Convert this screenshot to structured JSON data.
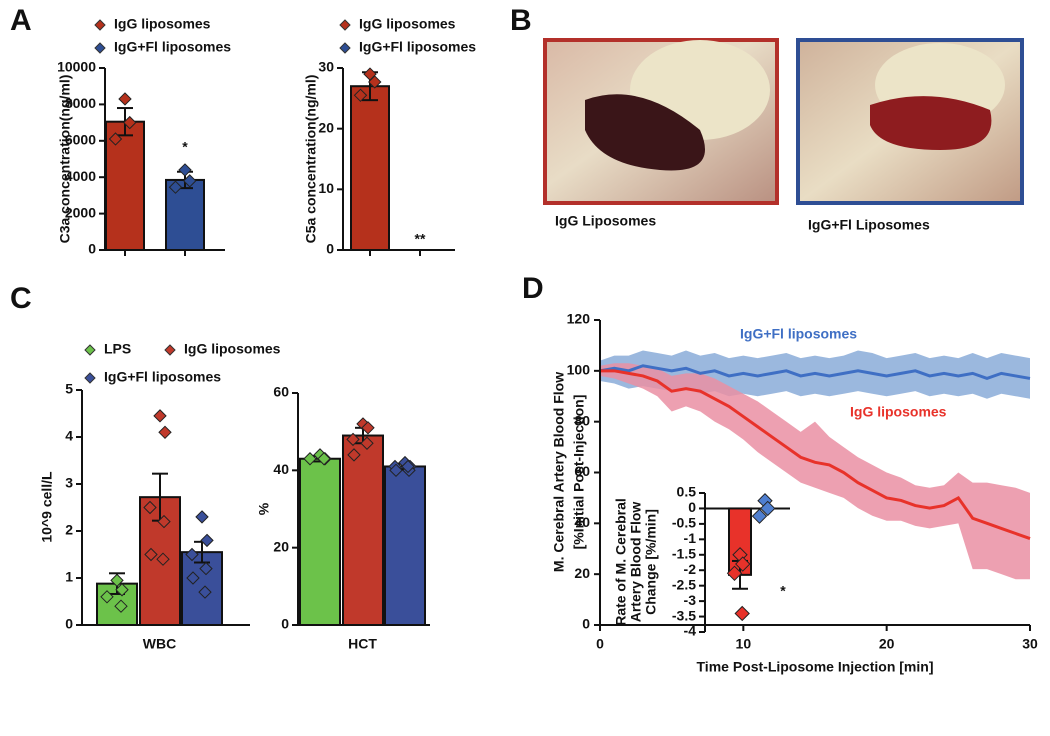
{
  "panel_labels": [
    "A",
    "B",
    "C",
    "D"
  ],
  "photos": [
    {
      "caption": "IgG Liposomes"
    },
    {
      "caption": "IgG+Fl Liposomes"
    }
  ],
  "chart_data": [
    {
      "type": "bar",
      "ylabel": "C3a concentration(ng/ml)",
      "categories": [
        null
      ],
      "series": [
        {
          "name": "IgG liposomes",
          "color": "#b5311c",
          "values": [
            7050
          ],
          "errors": [
            750
          ],
          "points": [
            [
              8300,
              7000,
              6100
            ]
          ]
        },
        {
          "name": "IgG+Fl liposomes",
          "color": "#2e4e94",
          "values": [
            3850
          ],
          "errors": [
            450
          ],
          "points": [
            [
              4400,
              3800,
              3450
            ]
          ]
        }
      ],
      "ylim": [
        0,
        10000
      ],
      "yticks": [
        0,
        2000,
        4000,
        6000,
        8000,
        10000
      ],
      "annotations": [
        "*"
      ]
    },
    {
      "type": "bar",
      "ylabel": "C5a concentration(ng/ml)",
      "categories": [
        null
      ],
      "series": [
        {
          "name": "IgG liposomes",
          "color": "#b5311c",
          "values": [
            27
          ],
          "errors": [
            2.3
          ],
          "points": [
            [
              29,
              27.7,
              25.5
            ]
          ]
        },
        {
          "name": "IgG+Fl liposomes",
          "color": "#2e4e94",
          "values": [
            0
          ],
          "errors": [
            0
          ],
          "points": [
            []
          ]
        }
      ],
      "ylim": [
        0,
        30
      ],
      "yticks": [
        0,
        10,
        20,
        30
      ],
      "annotations": [
        "**"
      ]
    },
    {
      "type": "bar",
      "ylabel": "10^9 cell/L",
      "categories": [
        "WBC"
      ],
      "series": [
        {
          "name": "LPS",
          "color": "#6cc24a",
          "values": [
            0.88
          ],
          "errors": [
            0.22
          ],
          "points": [
            [
              0.95,
              0.75,
              0.6,
              0.4
            ]
          ]
        },
        {
          "name": "IgG liposomes",
          "color": "#c0392b",
          "values": [
            2.72
          ],
          "errors": [
            0.5
          ],
          "points": [
            [
              4.45,
              4.1,
              2.5,
              2.2,
              1.5,
              1.4
            ]
          ]
        },
        {
          "name": "IgG+Fl liposomes",
          "color": "#3a4f9a",
          "values": [
            1.55
          ],
          "errors": [
            0.22
          ],
          "points": [
            [
              2.3,
              1.8,
              1.5,
              1.2,
              1.0,
              0.7
            ]
          ]
        }
      ],
      "ylim": [
        0,
        5
      ],
      "yticks": [
        0,
        1,
        2,
        3,
        4,
        5
      ]
    },
    {
      "type": "bar",
      "ylabel": "%",
      "categories": [
        "HCT"
      ],
      "series": [
        {
          "color": "#6cc24a",
          "values": [
            43
          ],
          "errors": [
            0.7
          ],
          "points": [
            [
              44,
              43,
              43,
              43
            ]
          ]
        },
        {
          "color": "#c0392b",
          "values": [
            49
          ],
          "errors": [
            2
          ],
          "points": [
            [
              52,
              51,
              48,
              47,
              44
            ]
          ]
        },
        {
          "color": "#3a4f9a",
          "values": [
            41
          ],
          "errors": [
            0.7
          ],
          "points": [
            [
              42,
              41,
              41,
              40,
              40,
              41
            ]
          ]
        }
      ],
      "ylim": [
        0,
        60
      ],
      "yticks": [
        0,
        20,
        40,
        60
      ]
    },
    {
      "type": "line",
      "ylabel": [
        "M. Cerebral Artery Blood Flow",
        "[%Initial Post-Injection]"
      ],
      "xlabel": "Time Post-Liposome Injection [min]",
      "x": [
        0,
        1,
        2,
        3,
        4,
        5,
        6,
        7,
        8,
        9,
        10,
        11,
        12,
        13,
        14,
        15,
        16,
        17,
        18,
        19,
        20,
        21,
        22,
        23,
        24,
        25,
        26,
        27,
        28,
        29,
        30
      ],
      "series": [
        {
          "name": "IgG+Fl liposomes",
          "color": "#3f6fc4",
          "band_color": "#8aabd8",
          "values": [
            100,
            101,
            100,
            102,
            101,
            100,
            101,
            99,
            100,
            98,
            99,
            98,
            99,
            100,
            98,
            99,
            98,
            99,
            100,
            99,
            98,
            99,
            100,
            98,
            99,
            98,
            99,
            97,
            99,
            98,
            97
          ],
          "lower": [
            96,
            95,
            93,
            94,
            93,
            92,
            93,
            91,
            92,
            90,
            91,
            90,
            91,
            92,
            90,
            91,
            90,
            91,
            92,
            91,
            90,
            91,
            92,
            90,
            91,
            90,
            91,
            89,
            91,
            90,
            89
          ],
          "upper": [
            104,
            106,
            106,
            108,
            107,
            106,
            108,
            106,
            107,
            105,
            106,
            105,
            106,
            107,
            105,
            106,
            105,
            106,
            108,
            107,
            105,
            106,
            107,
            105,
            106,
            105,
            107,
            105,
            107,
            106,
            105
          ]
        },
        {
          "name": "IgG liposomes",
          "color": "#e8322a",
          "band_color": "#ea8fa3",
          "values": [
            100,
            100,
            99,
            98,
            96,
            92,
            93,
            92,
            89,
            86,
            82,
            78,
            74,
            70,
            66,
            64,
            63,
            60,
            56,
            53,
            50,
            49,
            47,
            46,
            47,
            50,
            42,
            40,
            38,
            36,
            34
          ],
          "lower": [
            98,
            97,
            95,
            93,
            90,
            84,
            86,
            84,
            80,
            77,
            73,
            68,
            64,
            60,
            56,
            54,
            52,
            50,
            46,
            43,
            41,
            41,
            39,
            38,
            39,
            40,
            22,
            22,
            20,
            18,
            18
          ],
          "upper": [
            102,
            103,
            103,
            102,
            101,
            98,
            99,
            99,
            97,
            94,
            91,
            88,
            84,
            80,
            76,
            80,
            74,
            70,
            66,
            63,
            60,
            58,
            55,
            54,
            55,
            60,
            56,
            56,
            55,
            54,
            52
          ]
        }
      ],
      "xlim": [
        0,
        30
      ],
      "xticks": [
        0,
        10,
        20,
        30
      ],
      "ylim": [
        0,
        120
      ],
      "yticks": [
        0,
        20,
        40,
        60,
        80,
        100,
        120
      ]
    },
    {
      "type": "bar",
      "ylabel": [
        "Rate of M. Cerebral",
        "Artery Blood Flow",
        "Change [%/min]"
      ],
      "categories": [
        null
      ],
      "series": [
        {
          "color": "#e8322a",
          "values": [
            -2.15
          ],
          "errors": [
            0.45
          ],
          "points": [
            [
              -1.5,
              -1.8,
              -2.1,
              -3.4
            ]
          ]
        },
        {
          "color": "#4f7fd0",
          "values": [
            0
          ],
          "errors": [
            0
          ],
          "points": [
            [
              0.25,
              0,
              -0.25
            ]
          ]
        }
      ],
      "ylim": [
        -4,
        0.5
      ],
      "yticks": [
        0.5,
        0,
        -0.5,
        -1,
        -1.5,
        -2,
        -2.5,
        -3,
        -3.5,
        -4
      ],
      "annotations": [
        "*"
      ]
    }
  ]
}
